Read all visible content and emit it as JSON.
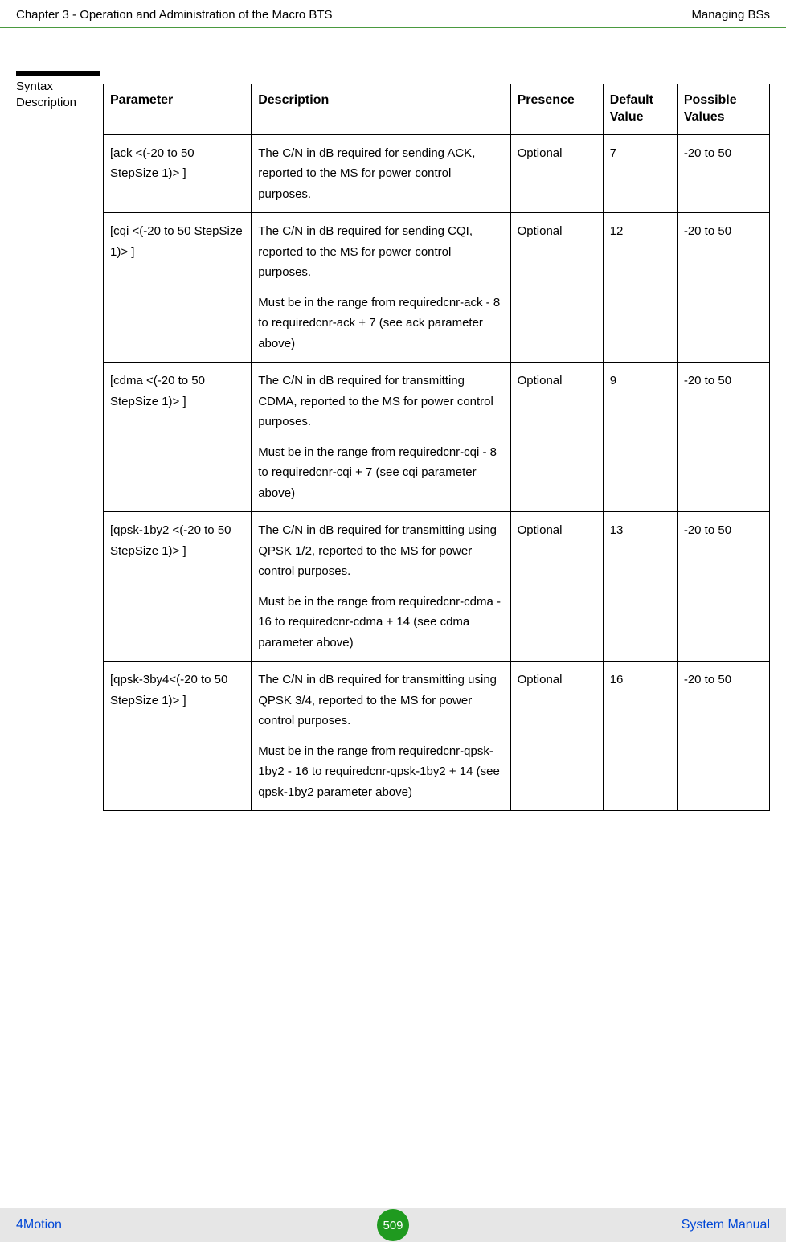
{
  "header": {
    "left": "Chapter 3 - Operation and Administration of the Macro BTS",
    "right": "Managing BSs"
  },
  "sideLabel": {
    "line1": "Syntax",
    "line2": "Description"
  },
  "table": {
    "headers": {
      "parameter": "Parameter",
      "description": "Description",
      "presence": "Presence",
      "defaultValue": "Default Value",
      "possibleValues": "Possible Values"
    },
    "rows": [
      {
        "parameter": "[ack <(-20 to 50 StepSize 1)> ]",
        "description": [
          "The C/N in dB required for sending ACK, reported to the MS for power control purposes."
        ],
        "presence": "Optional",
        "default": "7",
        "possible": "-20 to 50"
      },
      {
        "parameter": "[cqi <(-20 to 50 StepSize 1)> ]",
        "description": [
          "The C/N in dB required for sending CQI, reported to the MS for power control purposes.",
          "Must be in the range from requiredcnr-ack - 8 to requiredcnr-ack + 7 (see ack parameter above)"
        ],
        "presence": "Optional",
        "default": "12",
        "possible": "-20 to 50"
      },
      {
        "parameter": "[cdma <(-20 to 50 StepSize 1)> ]",
        "description": [
          "The C/N in dB required for transmitting CDMA, reported to the MS for power control purposes.",
          "Must be in the range from requiredcnr-cqi - 8 to requiredcnr-cqi + 7 (see cqi parameter above)"
        ],
        "presence": "Optional",
        "default": "9",
        "possible": "-20 to 50"
      },
      {
        "parameter": "[qpsk-1by2 <(-20 to 50 StepSize 1)> ]",
        "description": [
          "The C/N in dB required for transmitting using QPSK 1/2, reported to the MS for power control purposes.",
          "Must be in the range from requiredcnr-cdma - 16 to requiredcnr-cdma + 14 (see cdma parameter above)"
        ],
        "presence": "Optional",
        "default": "13",
        "possible": "-20 to 50"
      },
      {
        "parameter": "[qpsk-3by4<(-20 to 50 StepSize 1)> ]",
        "description": [
          "The C/N in dB required for transmitting using QPSK 3/4, reported to the MS for power control purposes.",
          "Must be in the range from requiredcnr-qpsk-1by2 - 16 to requiredcnr-qpsk-1by2 + 14 (see qpsk-1by2 parameter above)"
        ],
        "presence": "Optional",
        "default": "16",
        "possible": "-20 to 50"
      }
    ]
  },
  "footer": {
    "left": "4Motion",
    "page": "509",
    "right": "System Manual"
  }
}
